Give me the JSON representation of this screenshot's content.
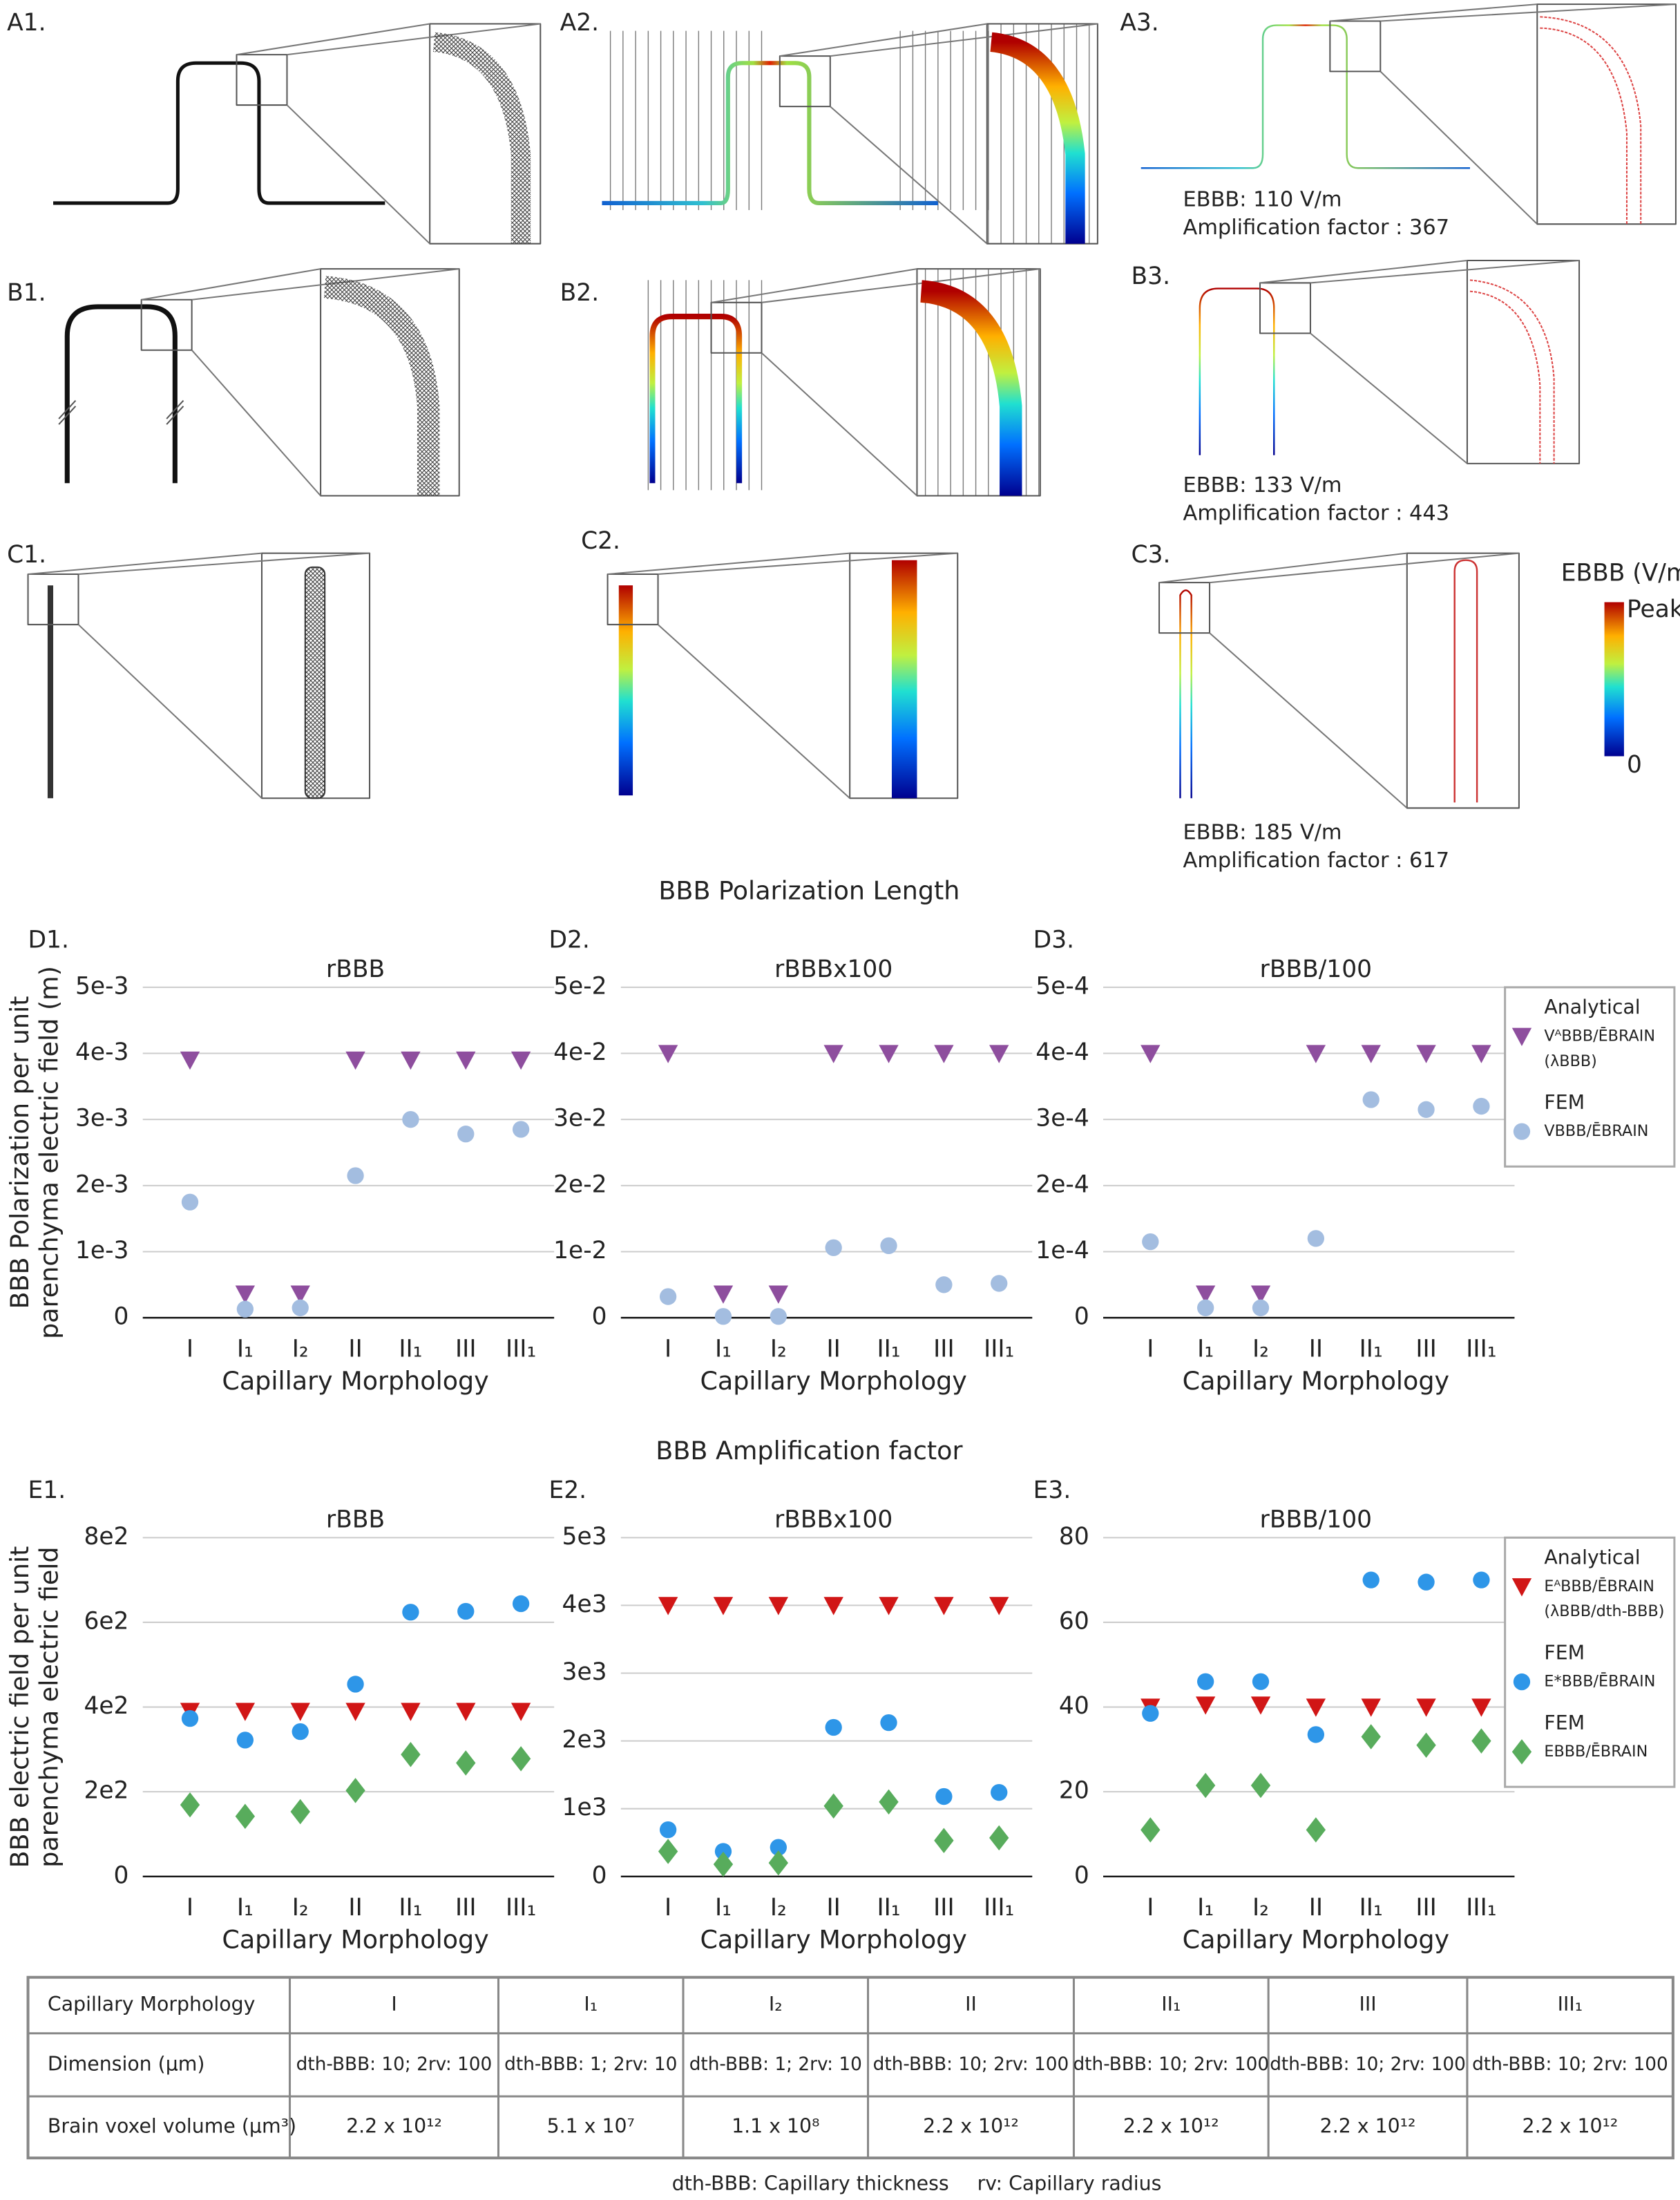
{
  "panel_labels": [
    "A1.",
    "A2.",
    "A3.",
    "B1.",
    "B2.",
    "B3.",
    "C1.",
    "C2.",
    "C3."
  ],
  "annotations": [
    [
      "EBBB: 110 V/m",
      "Amplification factor : 367"
    ],
    [
      "EBBB: 133 V/m",
      "Amplification factor : 443"
    ],
    [
      "EBBB: 185 V/m",
      "Amplification factor : 617"
    ]
  ],
  "colorbar": {
    "title": "EBBB (V/m)",
    "top": "Peak",
    "bottom": "0"
  },
  "sections": [
    "BBB Polarization Length",
    "BBB Amplification factor"
  ],
  "chart_data": [
    {
      "type": "scatter",
      "label": "D1.",
      "title": "rBBB",
      "xlabel": "Capillary Morphology",
      "ylabel": [
        "BBB Polarization  per unit",
        "parenchyma electric field (m)"
      ],
      "categories": [
        "I",
        "I₁",
        "I₂",
        "II",
        "II₁",
        "III",
        "III₁"
      ],
      "ylim": [
        0,
        0.005
      ],
      "yticks": [
        0,
        {
          "value": 0.001,
          "label": "1e-3"
        },
        {
          "value": 0.002,
          "label": "2e-3"
        },
        {
          "value": 0.003,
          "label": "3e-3"
        },
        {
          "value": 0.004,
          "label": "4e-3"
        },
        {
          "value": 0.005,
          "label": "5e-3"
        }
      ],
      "grid": true,
      "series": [
        {
          "name": "Analytical",
          "marker": "triangle",
          "color": "#8e4e9e",
          "values": [
            0.0039,
            0.00036,
            0.00036,
            0.0039,
            0.0039,
            0.0039,
            0.0039
          ]
        },
        {
          "name": "FEM",
          "marker": "circle",
          "color": "#a3bde0",
          "values": [
            0.00175,
            0.00013,
            0.00015,
            0.00215,
            0.003,
            0.00278,
            0.00285
          ]
        }
      ]
    },
    {
      "type": "scatter",
      "label": "D2.",
      "title": "rBBBx100",
      "xlabel": "Capillary Morphology",
      "categories": [
        "I",
        "I₁",
        "I₂",
        "II",
        "II₁",
        "III",
        "III₁"
      ],
      "ylim": [
        0,
        0.05
      ],
      "yticks": [
        0,
        {
          "value": 0.01,
          "label": "1e-2"
        },
        {
          "value": 0.02,
          "label": "2e-2"
        },
        {
          "value": 0.03,
          "label": "3e-2"
        },
        {
          "value": 0.04,
          "label": "4e-2"
        },
        {
          "value": 0.05,
          "label": "5e-2"
        }
      ],
      "grid": true,
      "series": [
        {
          "name": "Analytical",
          "marker": "triangle",
          "color": "#8e4e9e",
          "values": [
            0.04,
            0.0036,
            0.0036,
            0.04,
            0.04,
            0.04,
            0.04
          ]
        },
        {
          "name": "FEM",
          "marker": "circle",
          "color": "#a3bde0",
          "values": [
            0.0032,
            0.0002,
            0.0002,
            0.0106,
            0.0109,
            0.005,
            0.0052
          ]
        }
      ]
    },
    {
      "type": "scatter",
      "label": "D3.",
      "title": "rBBB/100",
      "xlabel": "Capillary Morphology",
      "categories": [
        "I",
        "I₁",
        "I₂",
        "II",
        "II₁",
        "III",
        "III₁"
      ],
      "ylim": [
        0,
        0.0005
      ],
      "yticks": [
        0,
        {
          "value": 0.0001,
          "label": "1e-4"
        },
        {
          "value": 0.0002,
          "label": "2e-4"
        },
        {
          "value": 0.0003,
          "label": "3e-4"
        },
        {
          "value": 0.0004,
          "label": "4e-4"
        },
        {
          "value": 0.0005,
          "label": "5e-4"
        }
      ],
      "grid": true,
      "legend": "right",
      "series": [
        {
          "name": "Analytical",
          "legend_text": [
            "VᴬBBB/ĒBRAIN",
            "(λBBB)"
          ],
          "marker": "triangle",
          "color": "#8e4e9e",
          "values": [
            0.0004,
            3.6e-05,
            3.6e-05,
            0.0004,
            0.0004,
            0.0004,
            0.0004
          ]
        },
        {
          "name": "FEM",
          "legend_text": [
            "VBBB/ĒBRAIN"
          ],
          "marker": "circle",
          "color": "#a3bde0",
          "values": [
            0.000115,
            1.5e-05,
            1.5e-05,
            0.00012,
            0.00033,
            0.000315,
            0.00032
          ]
        }
      ]
    },
    {
      "type": "scatter",
      "label": "E1.",
      "title": "rBBB",
      "xlabel": "Capillary Morphology",
      "ylabel": [
        "BBB electric field per unit",
        "parenchyma electric field"
      ],
      "categories": [
        "I",
        "I₁",
        "I₂",
        "II",
        "II₁",
        "III",
        "III₁"
      ],
      "ylim": [
        0,
        800
      ],
      "yticks": [
        0,
        {
          "value": 200,
          "label": "2e2"
        },
        {
          "value": 400,
          "label": "4e2"
        },
        {
          "value": 600,
          "label": "6e2"
        },
        {
          "value": 800,
          "label": "8e2"
        }
      ],
      "grid": true,
      "series": [
        {
          "name": "Analytical",
          "marker": "triangle",
          "color": "#d11616",
          "values": [
            390,
            390,
            390,
            390,
            390,
            390,
            390
          ]
        },
        {
          "name": "FEM",
          "marker": "circle",
          "color": "#2e96e8",
          "values": [
            373,
            322,
            342,
            454,
            624,
            626,
            644
          ]
        },
        {
          "name": "FEM",
          "marker": "diamond",
          "color": "#58ac5c",
          "values": [
            169,
            142,
            153,
            203,
            288,
            268,
            278
          ]
        }
      ]
    },
    {
      "type": "scatter",
      "label": "E2.",
      "title": "rBBBx100",
      "xlabel": "Capillary Morphology",
      "categories": [
        "I",
        "I₁",
        "I₂",
        "II",
        "II₁",
        "III",
        "III₁"
      ],
      "ylim": [
        0,
        5000
      ],
      "yticks": [
        0,
        {
          "value": 1000,
          "label": "1e3"
        },
        {
          "value": 2000,
          "label": "2e3"
        },
        {
          "value": 3000,
          "label": "3e3"
        },
        {
          "value": 4000,
          "label": "4e3"
        },
        {
          "value": 5000,
          "label": "5e3"
        }
      ],
      "grid": true,
      "series": [
        {
          "name": "Analytical",
          "marker": "triangle",
          "color": "#d11616",
          "values": [
            4000,
            4000,
            4000,
            4000,
            4000,
            4000,
            4000
          ]
        },
        {
          "name": "FEM",
          "marker": "circle",
          "color": "#2e96e8",
          "values": [
            690,
            370,
            430,
            2200,
            2270,
            1180,
            1240
          ]
        },
        {
          "name": "FEM",
          "marker": "diamond",
          "color": "#58ac5c",
          "values": [
            370,
            180,
            200,
            1040,
            1100,
            530,
            570
          ]
        }
      ]
    },
    {
      "type": "scatter",
      "label": "E3.",
      "title": "rBBB/100",
      "xlabel": "Capillary Morphology",
      "categories": [
        "I",
        "I₁",
        "I₂",
        "II",
        "II₁",
        "III",
        "III₁"
      ],
      "ylim": [
        0,
        80
      ],
      "yticks": [
        0,
        20,
        40,
        60,
        80
      ],
      "grid": true,
      "legend": "right",
      "series": [
        {
          "name": "Analytical",
          "legend_text": [
            "EᴬBBB/ĒBRAIN",
            "(λBBB/dth-BBB)"
          ],
          "marker": "triangle",
          "color": "#d11616",
          "values": [
            40,
            40.5,
            40.5,
            40,
            40,
            40,
            40
          ]
        },
        {
          "name": "FEM",
          "legend_text": [
            "E*BBB/ĒBRAIN"
          ],
          "marker": "circle",
          "color": "#2e96e8",
          "values": [
            38.5,
            46,
            46,
            33.5,
            70,
            69.5,
            70
          ]
        },
        {
          "name": "FEM",
          "legend_text": [
            "EBBB/ĒBRAIN"
          ],
          "marker": "diamond",
          "color": "#58ac5c",
          "values": [
            11,
            21.5,
            21.5,
            11,
            33,
            31,
            32
          ]
        }
      ]
    }
  ],
  "table": {
    "rows": [
      [
        "Capillary Morphology",
        "I",
        "I₁",
        "I₂",
        "II",
        "II₁",
        "III",
        "III₁"
      ],
      [
        "Dimension (μm)",
        "dth-BBB: 10; 2rv: 100",
        "dth-BBB: 1; 2rv: 10",
        "dth-BBB: 1; 2rv: 10",
        "dth-BBB: 10; 2rv: 100",
        "dth-BBB: 10; 2rv: 100",
        "dth-BBB: 10; 2rv: 100",
        "dth-BBB: 10; 2rv: 100"
      ],
      [
        "Brain voxel volume (μm³)",
        "2.2 x 10¹²",
        "5.1 x 10⁷",
        "1.1 x 10⁸",
        "2.2 x 10¹²",
        "2.2 x 10¹²",
        "2.2 x 10¹²",
        "2.2 x 10¹²"
      ]
    ]
  },
  "footnotes": [
    "dth-BBB: Capillary thickness",
    "rv: Capillary radius"
  ]
}
